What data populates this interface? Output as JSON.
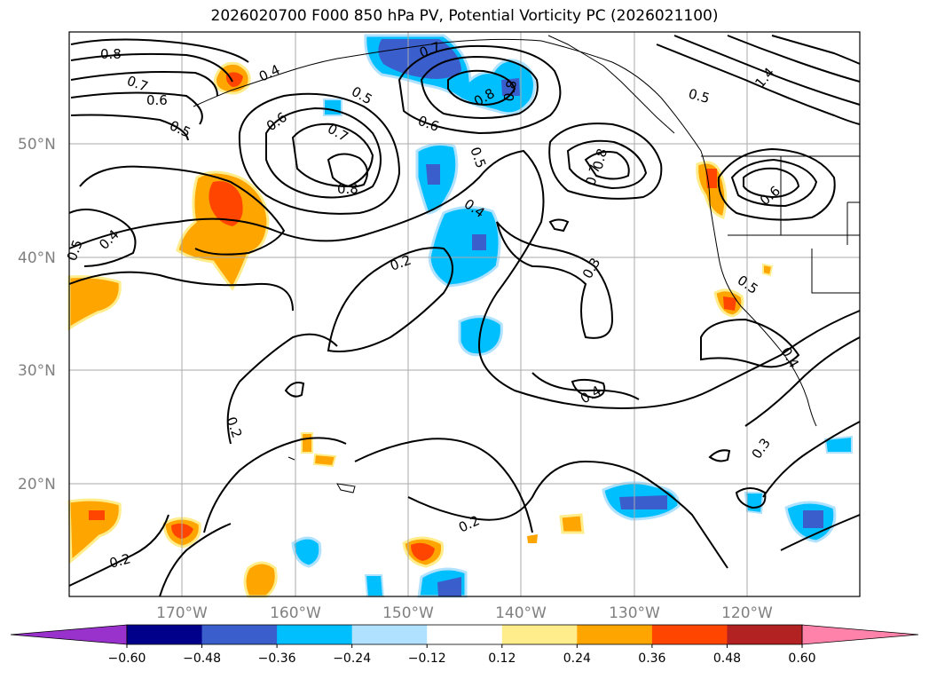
{
  "title": "2026020700 F000 850 hPa PV, Potential Vorticity PC (2026021100)",
  "lat_ticks": [
    "50°N",
    "40°N",
    "30°N",
    "20°N"
  ],
  "lon_ticks": [
    "170°W",
    "160°W",
    "150°W",
    "140°W",
    "130°W",
    "120°W"
  ],
  "contour_labels": [
    "0.8",
    "0.7",
    "0.6",
    "0.5",
    "0.4",
    "0.5",
    "0.6",
    "0.7",
    "0.8",
    "0.7",
    "0.8",
    "0.6",
    "0.5",
    "0.4",
    "0.3",
    "0.2",
    "0.2",
    "0.2",
    "0.2",
    "0.3",
    "0.4",
    "0.4",
    "0.5",
    "0.6",
    "0.7",
    "0.8",
    "0.8",
    "1.4",
    "0.5",
    "0.4",
    "0.5"
  ],
  "colorbar": {
    "ticks": [
      "−0.60",
      "−0.48",
      "−0.36",
      "−0.24",
      "−0.12",
      "0.12",
      "0.24",
      "0.36",
      "0.48",
      "0.60"
    ],
    "colors": [
      "#9932cc",
      "#00008b",
      "#3a5fcd",
      "#00bfff",
      "#b0e2ff",
      "#ffffff",
      "#ffec8b",
      "#ffa500",
      "#ff4500",
      "#b22222",
      "#ff82ab"
    ]
  }
}
